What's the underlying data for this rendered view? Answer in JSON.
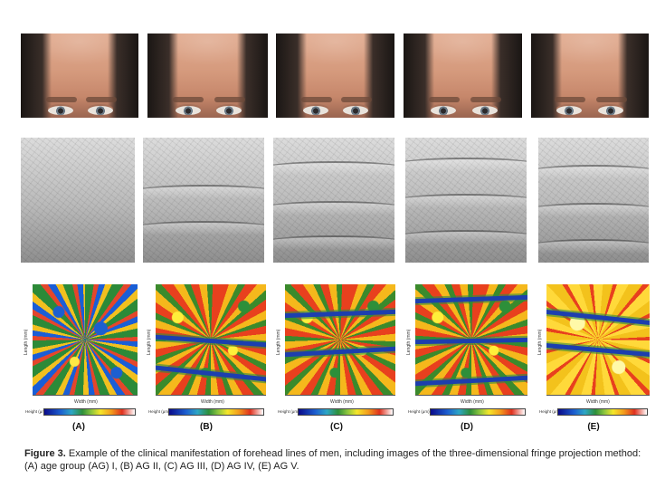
{
  "panels": [
    {
      "letter": "(A)",
      "height_map_style": "cool"
    },
    {
      "letter": "(B)",
      "height_map_style": "mixed"
    },
    {
      "letter": "(C)",
      "height_map_style": "mixed"
    },
    {
      "letter": "(D)",
      "height_map_style": "mixed"
    },
    {
      "letter": "(E)",
      "height_map_style": "warm"
    }
  ],
  "axes": {
    "y_label": "Length (mm)",
    "x_label": "Width (mm)",
    "colorbar_label": "Height (μm)"
  },
  "caption": {
    "lead": "Figure 3.",
    "text": " Example of the clinical manifestation of forehead lines of men, including images of the three-dimensional fringe projection method: (A) age group (AG) I, (B) AG II, (C) AG III, (D) AG IV, (E) AG V."
  }
}
